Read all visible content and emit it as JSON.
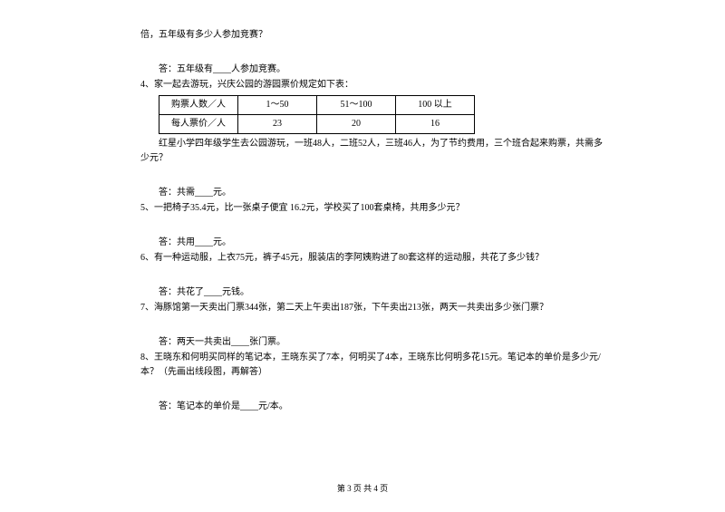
{
  "q3": {
    "trailing": "倍，五年级有多少人参加竞赛？",
    "answer": "答：五年级有____人参加竞赛。"
  },
  "q4": {
    "intro": "4、家一起去游玩，兴庆公园的游园票价规定如下表：",
    "table": {
      "header_count": "购票人数／人",
      "header_price": "每人票价／人",
      "col1": "1～50",
      "col2": "51～100",
      "col3": "100 以上",
      "price1": "23",
      "price2": "20",
      "price3": "16"
    },
    "body": "红星小学四年级学生去公园游玩，一班48人，二班52人，三班46人，为了节约费用，三个班合起来购票，共需多少元？",
    "answer": "答：共需____元。"
  },
  "q5": {
    "text": "5、一把椅子35.4元，比一张桌子便宜 16.2元，学校买了100套桌椅，共用多少元？",
    "answer": "答：共用____元。"
  },
  "q6": {
    "text": "6、有一种运动服，上衣75元，裤子45元，服装店的李阿姨购进了80套这样的运动服，共花了多少钱？",
    "answer": "答：共花了____元钱。"
  },
  "q7": {
    "text": "7、海豚馆第一天卖出门票344张，第二天上午卖出187张，下午卖出213张，两天一共卖出多少张门票？",
    "answer": "答：两天一共卖出____张门票。"
  },
  "q8": {
    "text": "8、王晓东和何明买同样的笔记本，王晓东买了7本，何明买了4本，王晓东比何明多花15元。笔记本的单价是多少元/本？（先画出线段图，再解答）",
    "answer": "答：笔记本的单价是____元/本。"
  },
  "footer": "第 3 页 共 4 页"
}
